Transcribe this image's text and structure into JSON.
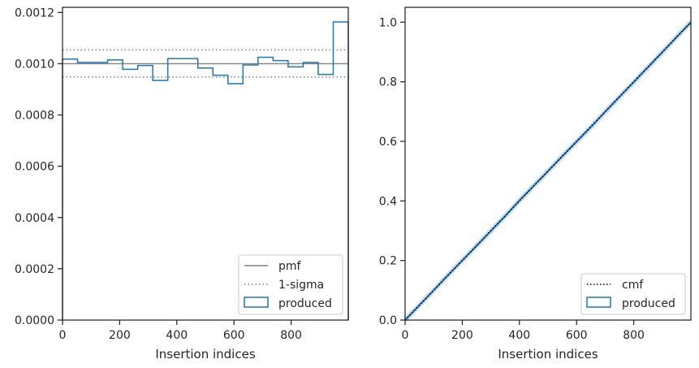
{
  "chart_data": [
    {
      "type": "step",
      "xlabel": "Insertion indices",
      "ylabel": "",
      "xlim": [
        0,
        1000
      ],
      "ylim": [
        0,
        0.00122
      ],
      "xticks": [
        0,
        200,
        400,
        600,
        800
      ],
      "xtick_labels": [
        "0",
        "200",
        "400",
        "600",
        "800"
      ],
      "yticks": [
        0,
        0.0002,
        0.0004,
        0.0006,
        0.0008,
        0.001,
        0.0012
      ],
      "ytick_labels": [
        "0.0000",
        "0.0002",
        "0.0004",
        "0.0006",
        "0.0008",
        "0.0010",
        "0.0012"
      ],
      "grid": false,
      "legend_position": "lower right",
      "pmf": {
        "name": "pmf",
        "value": 0.001,
        "color": "#808080"
      },
      "sigma": {
        "name": "1-sigma",
        "values": [
          0.000948,
          0.001054
        ],
        "color": "#808080"
      },
      "series": [
        {
          "name": "produced",
          "color": "#1f77b4",
          "bin_edges": [
            0,
            52.6,
            105.3,
            157.9,
            210.5,
            263.2,
            315.8,
            368.4,
            421.1,
            473.7,
            526.3,
            578.9,
            631.6,
            684.2,
            736.8,
            789.5,
            842.1,
            894.7,
            947.4,
            1000
          ],
          "values": [
            0.001018,
            0.001005,
            0.001005,
            0.001015,
            0.000978,
            0.000993,
            0.000935,
            0.00102,
            0.00102,
            0.000983,
            0.000955,
            0.000922,
            0.000995,
            0.001025,
            0.001012,
            0.000988,
            0.001005,
            0.000958,
            0.001163
          ]
        }
      ],
      "legend": [
        "pmf",
        "1-sigma",
        "produced"
      ]
    },
    {
      "type": "line",
      "xlabel": "Insertion indices",
      "ylabel": "",
      "xlim": [
        0,
        1000
      ],
      "ylim": [
        0,
        1.05
      ],
      "xticks": [
        0,
        200,
        400,
        600,
        800
      ],
      "xtick_labels": [
        "0",
        "200",
        "400",
        "600",
        "800"
      ],
      "yticks": [
        0,
        0.2,
        0.4,
        0.6,
        0.8,
        1.0
      ],
      "ytick_labels": [
        "0.0",
        "0.2",
        "0.4",
        "0.6",
        "0.8",
        "1.0"
      ],
      "grid": false,
      "legend_position": "lower right",
      "series": [
        {
          "name": "cmf",
          "style": "dotted",
          "color": "#000000",
          "x": [
            0,
            1000
          ],
          "y": [
            0,
            1
          ]
        },
        {
          "name": "produced",
          "color": "#1f77b4",
          "x": [
            0,
            50,
            100,
            150,
            200,
            250,
            300,
            350,
            400,
            450,
            500,
            550,
            600,
            650,
            700,
            750,
            800,
            850,
            900,
            950,
            1000
          ],
          "y": [
            0,
            0.05,
            0.1,
            0.151,
            0.2,
            0.249,
            0.299,
            0.349,
            0.401,
            0.451,
            0.5,
            0.55,
            0.599,
            0.648,
            0.699,
            0.749,
            0.799,
            0.849,
            0.899,
            0.95,
            1.0
          ]
        }
      ],
      "legend": [
        "cmf",
        "produced"
      ]
    }
  ]
}
